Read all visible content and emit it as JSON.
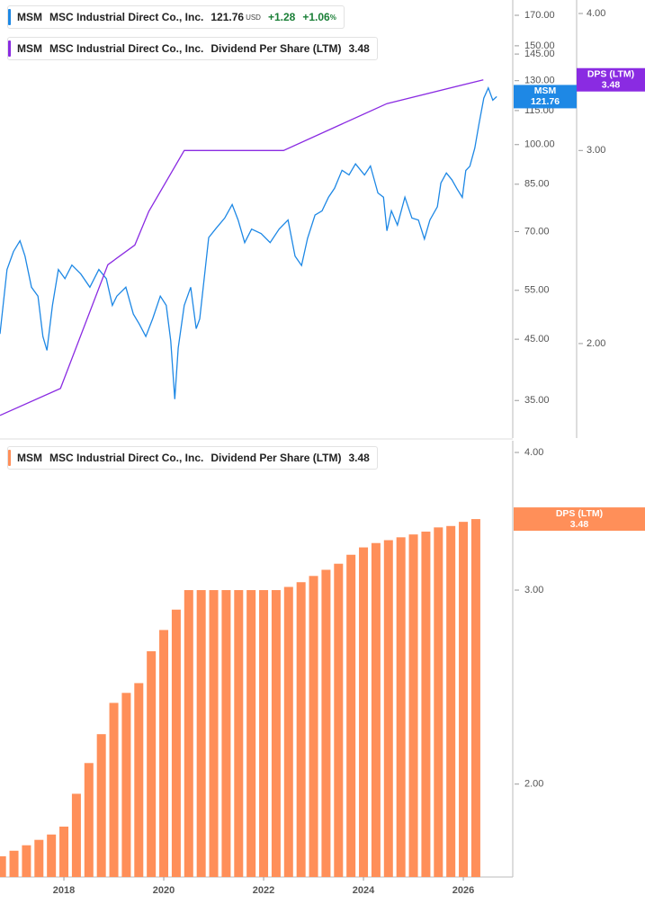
{
  "chart_data": [
    {
      "type": "line",
      "log_scale": true,
      "xlim": [
        2016.72,
        2026.99
      ],
      "ylim": [
        30.0,
        181
      ],
      "yticks": [
        {
          "value": 170,
          "label": "170.00"
        },
        {
          "value": 150,
          "label": "150.00"
        },
        {
          "value": 145,
          "label": "145.00"
        },
        {
          "value": 130,
          "label": "130.00"
        },
        {
          "value": 115,
          "label": "115.00"
        },
        {
          "value": 100,
          "label": "100.00"
        },
        {
          "value": 85,
          "label": "85.00"
        },
        {
          "value": 70,
          "label": "70.00"
        },
        {
          "value": 55,
          "label": "55.00"
        },
        {
          "value": 45,
          "label": "45.00"
        },
        {
          "value": 35,
          "label": "35.00"
        }
      ],
      "y2lim": [
        1.64,
        4.115
      ],
      "y2ticks": [
        {
          "value": 4,
          "label": "4.00"
        },
        {
          "value": 3,
          "label": "3.00"
        },
        {
          "value": 2,
          "label": "2.00"
        }
      ],
      "series": [
        {
          "name": "MSM",
          "company": "MSC Industrial Direct Co., Inc.",
          "color": "#1e88e5",
          "currency": "USD",
          "change": {
            "value": 1.28,
            "label": "+1.28"
          },
          "change_pct": {
            "value": 1.06,
            "label": "+1.06"
          },
          "pct_unit": "%",
          "x": [
            2016.72,
            2016.86,
            2016.99,
            2017.12,
            2017.22,
            2017.35,
            2017.48,
            2017.58,
            2017.66,
            2017.77,
            2017.89,
            2018.02,
            2018.16,
            2018.34,
            2018.52,
            2018.7,
            2018.85,
            2018.97,
            2019.06,
            2019.24,
            2019.39,
            2019.51,
            2019.64,
            2019.78,
            2019.93,
            2020.05,
            2020.14,
            2020.22,
            2020.29,
            2020.41,
            2020.54,
            2020.65,
            2020.72,
            2020.83,
            2020.9,
            2021.04,
            2021.22,
            2021.37,
            2021.49,
            2021.62,
            2021.76,
            2021.95,
            2022.13,
            2022.31,
            2022.49,
            2022.63,
            2022.76,
            2022.88,
            2023.03,
            2023.17,
            2023.3,
            2023.42,
            2023.57,
            2023.71,
            2023.84,
            2024.02,
            2024.14,
            2024.29,
            2024.4,
            2024.47,
            2024.56,
            2024.68,
            2024.83,
            2024.97,
            2025.1,
            2025.22,
            2025.33,
            2025.48,
            2025.55,
            2025.66,
            2025.77,
            2025.87,
            2025.98,
            2026.05,
            2026.13,
            2026.23,
            2026.31,
            2026.41,
            2026.5,
            2026.59,
            2026.67
          ],
          "values": [
            46.0,
            59.9,
            64.5,
            67.4,
            63.3,
            55.7,
            53.7,
            45.5,
            43.0,
            51.7,
            59.9,
            57.7,
            61.0,
            58.8,
            55.7,
            59.9,
            57.7,
            51.7,
            53.7,
            55.7,
            49.9,
            47.9,
            45.5,
            49.0,
            53.7,
            51.7,
            44.7,
            35.2,
            43.4,
            51.7,
            55.7,
            47.0,
            48.9,
            59.9,
            68.3,
            70.8,
            74.0,
            78.2,
            73.4,
            66.9,
            70.7,
            69.4,
            66.9,
            70.7,
            73.4,
            63.3,
            60.9,
            68.1,
            74.9,
            76.2,
            80.6,
            83.6,
            90.0,
            88.3,
            92.4,
            88.3,
            91.6,
            82.0,
            80.6,
            70.2,
            76.2,
            71.9,
            80.6,
            74.0,
            73.4,
            67.9,
            73.4,
            77.5,
            85.4,
            89.0,
            86.6,
            83.5,
            80.5,
            89.9,
            91.5,
            98.6,
            108.5,
            121.0,
            126.2,
            120.0,
            121.76
          ]
        },
        {
          "name": "MSM",
          "company": "MSC Industrial Direct Co., Inc.",
          "metric": "Dividend Per Share (LTM)",
          "badge_label": "DPS (LTM)",
          "color": "#8a2be2",
          "axis": "y2",
          "x": [
            2016.72,
            2017.93,
            2018.88,
            2019.42,
            2019.7,
            2020.41,
            2022.4,
            2024.47,
            2026.4
          ],
          "values": [
            1.72,
            1.82,
            2.36,
            2.46,
            2.64,
            3.0,
            3.0,
            3.31,
            3.48
          ]
        }
      ]
    },
    {
      "type": "bar",
      "log_scale": true,
      "xlim": [
        2016.72,
        2026.99
      ],
      "xticks": [
        2018,
        2020,
        2022,
        2024,
        2026
      ],
      "ylim": [
        1.647,
        4.099
      ],
      "yticks": [
        {
          "value": 4,
          "label": "4.00"
        },
        {
          "value": 3,
          "label": "3.00"
        },
        {
          "value": 2,
          "label": "2.00"
        }
      ],
      "series": [
        {
          "name": "MSM",
          "company": "MSC Industrial Direct Co., Inc.",
          "metric": "Dividend Per Share (LTM)",
          "badge_label": "DPS (LTM)",
          "color": "#ff8f59",
          "x": [
            2016.75,
            2017.0,
            2017.25,
            2017.5,
            2017.75,
            2018.0,
            2018.25,
            2018.5,
            2018.75,
            2019.0,
            2019.25,
            2019.5,
            2019.75,
            2020.0,
            2020.25,
            2020.5,
            2020.75,
            2021.0,
            2021.25,
            2021.5,
            2021.75,
            2022.0,
            2022.25,
            2022.5,
            2022.75,
            2023.0,
            2023.25,
            2023.5,
            2023.75,
            2024.0,
            2024.25,
            2024.5,
            2024.75,
            2025.0,
            2025.25,
            2025.5,
            2025.75,
            2026.0,
            2026.25
          ],
          "values": [
            1.72,
            1.74,
            1.76,
            1.78,
            1.8,
            1.83,
            1.96,
            2.09,
            2.22,
            2.37,
            2.42,
            2.47,
            2.64,
            2.76,
            2.88,
            3.0,
            3.0,
            3.0,
            3.0,
            3.0,
            3.0,
            3.0,
            3.0,
            3.02,
            3.05,
            3.09,
            3.13,
            3.17,
            3.23,
            3.28,
            3.31,
            3.33,
            3.35,
            3.37,
            3.39,
            3.42,
            3.43,
            3.46,
            3.48
          ]
        }
      ]
    }
  ]
}
